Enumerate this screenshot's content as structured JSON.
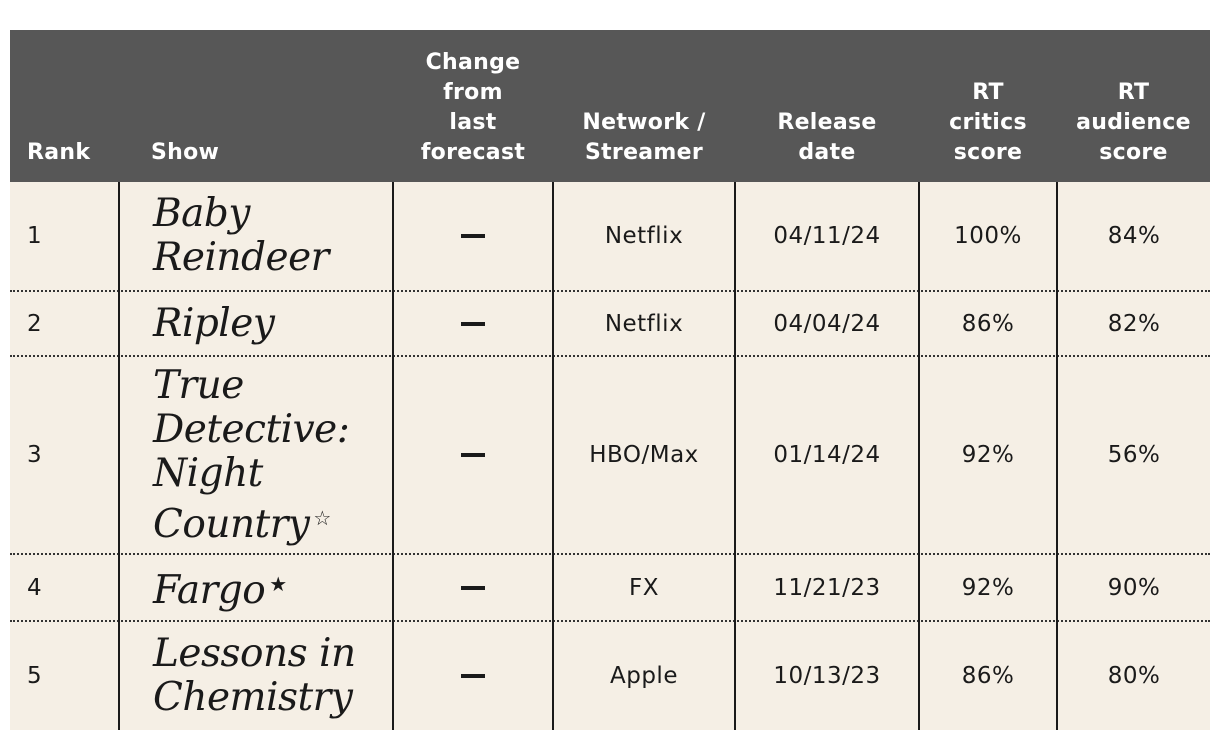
{
  "headers": {
    "rank": "Rank",
    "show": "Show",
    "change": [
      "Change",
      "from",
      "last",
      "forecast"
    ],
    "network": [
      "Network /",
      "Streamer"
    ],
    "release": [
      "Release",
      "date"
    ],
    "critics": [
      "RT",
      "critics",
      "score"
    ],
    "audience": [
      "RT",
      "audience",
      "score"
    ]
  },
  "rows": [
    {
      "rank": "1",
      "show_lines": [
        "Baby",
        "Reindeer"
      ],
      "star": "",
      "change": "—",
      "network": "Netflix",
      "release": "04/11/24",
      "critics": "100%",
      "audience": "84%"
    },
    {
      "rank": "2",
      "show_lines": [
        "Ripley"
      ],
      "star": "",
      "change": "—",
      "network": "Netflix",
      "release": "04/04/24",
      "critics": "86%",
      "audience": "82%"
    },
    {
      "rank": "3",
      "show_lines": [
        "True",
        "Detective:",
        "Night",
        "Country"
      ],
      "star": "☆",
      "change": "—",
      "network": "HBO/Max",
      "release": "01/14/24",
      "critics": "92%",
      "audience": "56%"
    },
    {
      "rank": "4",
      "show_lines": [
        "Fargo"
      ],
      "star": "★",
      "change": "—",
      "network": "FX",
      "release": "11/21/23",
      "critics": "92%",
      "audience": "90%"
    },
    {
      "rank": "5",
      "show_lines": [
        "Lessons in",
        "Chemistry"
      ],
      "star": "",
      "change": "—",
      "network": "Apple",
      "release": "10/13/23",
      "critics": "86%",
      "audience": "80%"
    }
  ],
  "colors": {
    "header_bg": "#575757",
    "body_bg": "#f5efe5",
    "text": "#1a1a1a"
  }
}
